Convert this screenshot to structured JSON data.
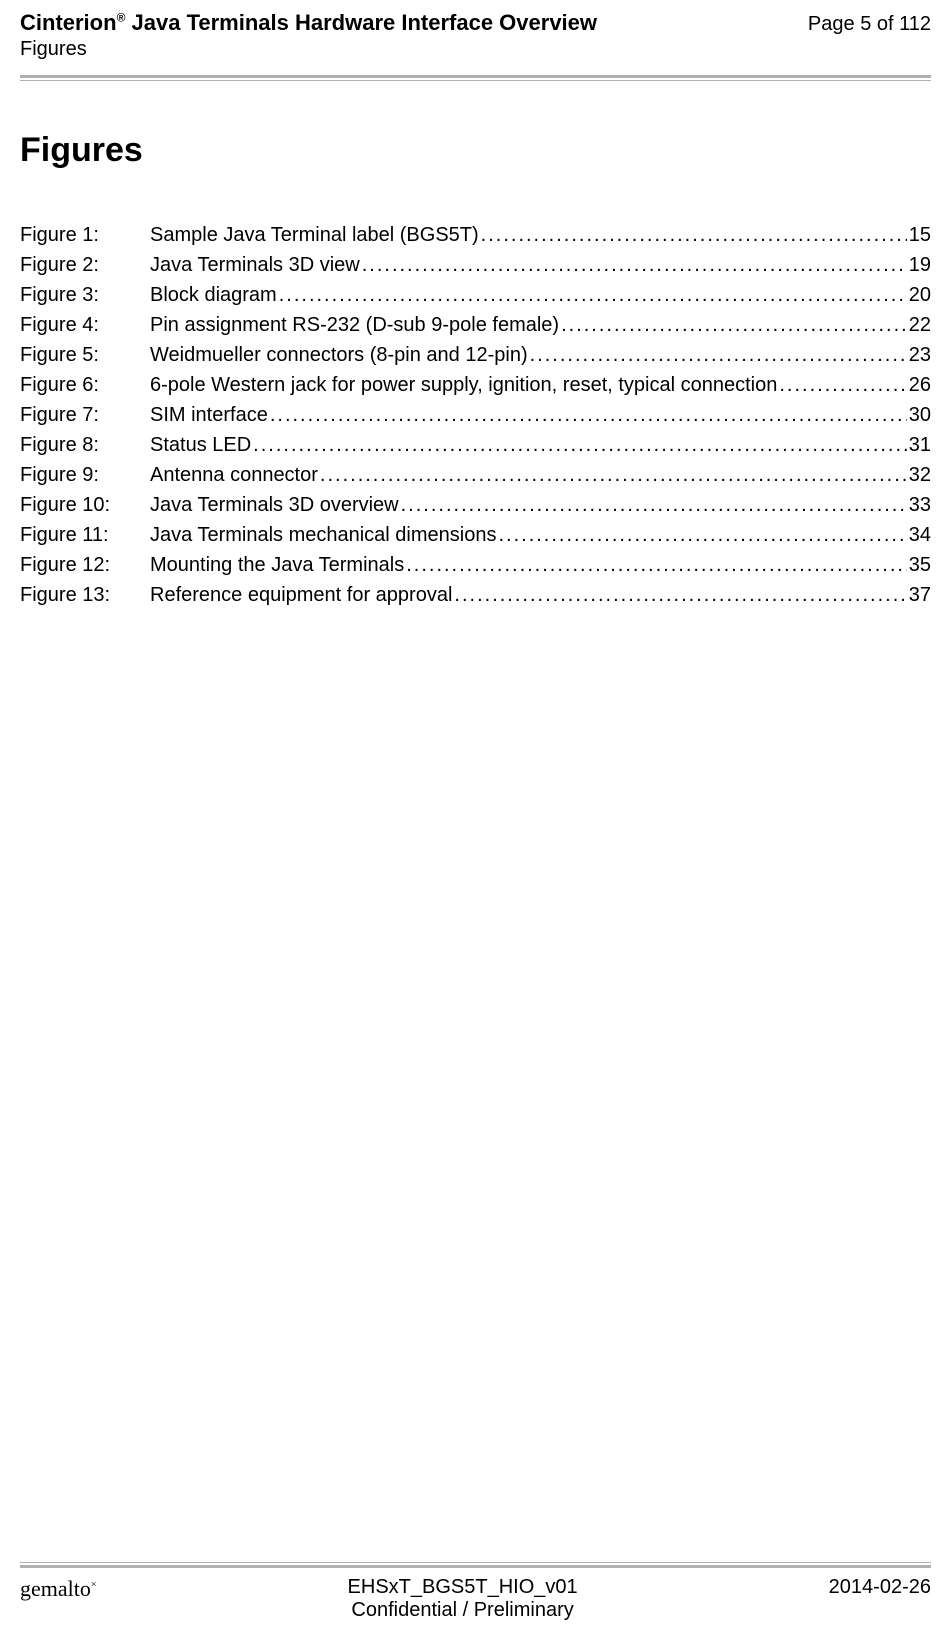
{
  "header": {
    "title_prefix": "Cinterion",
    "title_reg": "®",
    "title_rest": " Java Terminals Hardware Interface Overview",
    "page_label": "Page 5 of 112",
    "section": "Figures"
  },
  "heading": "Figures",
  "toc": [
    {
      "label": "Figure 1:",
      "text": "Sample Java Terminal label (BGS5T)",
      "page": "15"
    },
    {
      "label": "Figure 2:",
      "text": "Java Terminals 3D view",
      "page": "19"
    },
    {
      "label": "Figure 3:",
      "text": "Block diagram ",
      "page": "20"
    },
    {
      "label": "Figure 4:",
      "text": "Pin assignment RS-232 (D-sub 9-pole female)",
      "page": "22"
    },
    {
      "label": "Figure 5:",
      "text": "Weidmueller connectors (8-pin and 12-pin) ",
      "page": "23"
    },
    {
      "label": "Figure 6:",
      "text": "6-pole Western jack for power supply, ignition, reset, typical connection",
      "page": "26"
    },
    {
      "label": "Figure 7:",
      "text": "SIM interface",
      "page": "30"
    },
    {
      "label": "Figure 8:",
      "text": "Status LED",
      "page": "31"
    },
    {
      "label": "Figure 9:",
      "text": "Antenna connector",
      "page": "32"
    },
    {
      "label": "Figure 10:",
      "text": "Java Terminals 3D overview",
      "page": "33"
    },
    {
      "label": "Figure 11:",
      "text": "Java Terminals mechanical dimensions ",
      "page": "34"
    },
    {
      "label": "Figure 12:",
      "text": "Mounting the Java Terminals",
      "page": "35"
    },
    {
      "label": "Figure 13:",
      "text": "Reference equipment for approval",
      "page": "37"
    }
  ],
  "footer": {
    "brand_g": "g",
    "brand_rest": "emalto",
    "brand_sup": "×",
    "doc_id": "EHSxT_BGS5T_HIO_v01",
    "confidential": "Confidential / Preliminary",
    "date": "2014-02-26"
  }
}
